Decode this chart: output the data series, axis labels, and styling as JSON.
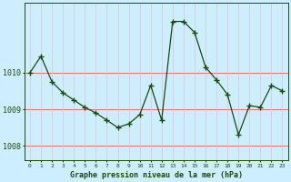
{
  "x": [
    0,
    1,
    2,
    3,
    4,
    5,
    6,
    7,
    8,
    9,
    10,
    11,
    12,
    13,
    14,
    15,
    16,
    17,
    18,
    19,
    20,
    21,
    22,
    23
  ],
  "y": [
    1010.0,
    1010.45,
    1009.75,
    1009.45,
    1009.25,
    1009.05,
    1008.9,
    1008.7,
    1008.5,
    1008.6,
    1008.85,
    1009.65,
    1008.7,
    1011.4,
    1011.4,
    1011.1,
    1010.15,
    1009.8,
    1009.4,
    1008.3,
    1009.1,
    1009.05,
    1009.65,
    1009.5
  ],
  "line_color": "#1a4a0a",
  "marker_color": "#1a4a0a",
  "bg_color": "#cceeff",
  "grid_color_h": "#e06060",
  "grid_color_v": "#ddbbbb",
  "axis_color": "#1a4a0a",
  "title": "Graphe pression niveau de la mer (hPa)",
  "title_color": "#1a4a0a",
  "xlabel_ticks": [
    "0",
    "1",
    "2",
    "3",
    "4",
    "5",
    "6",
    "7",
    "8",
    "9",
    "10",
    "11",
    "12",
    "13",
    "14",
    "15",
    "16",
    "17",
    "18",
    "19",
    "20",
    "21",
    "22",
    "23"
  ],
  "ytick_labels": [
    "1008",
    "1009",
    "1010"
  ],
  "ytick_values": [
    1008,
    1009,
    1010
  ],
  "ylim": [
    1007.6,
    1011.9
  ],
  "xlim": [
    -0.5,
    23.5
  ]
}
